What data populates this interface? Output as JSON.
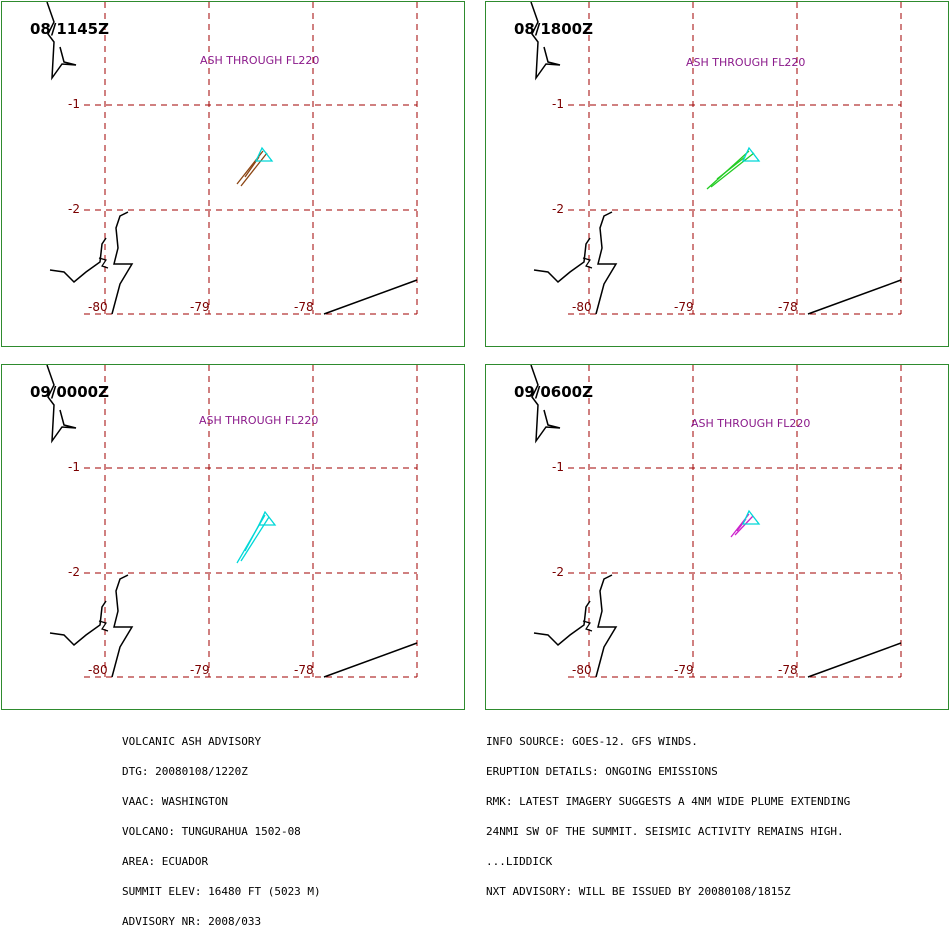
{
  "panels": [
    {
      "time": "08/1145Z",
      "ash": "ASH THROUGH FL220",
      "ash_color": "#8b1a8b",
      "plume_color": "#8b4513"
    },
    {
      "time": "08/1800Z",
      "ash": "ASH THROUGH FL220",
      "ash_color": "#8b1a8b",
      "plume_color": "#22cc22"
    },
    {
      "time": "09/0000Z",
      "ash": "ASH THROUGH FL220",
      "ash_color": "#8b1a8b",
      "plume_color": "#00d8d8"
    },
    {
      "time": "09/0600Z",
      "ash": "ASH THROUGH FL220",
      "ash_color": "#8b1a8b",
      "plume_color": "#cc22cc"
    }
  ],
  "axis": {
    "lat_labels": [
      "-1",
      "-2"
    ],
    "lon_labels": [
      "-80",
      "-79",
      "-78"
    ]
  },
  "volcano_marker_color": "#00d8d8",
  "grid_color": "#a00000",
  "advisory_left": [
    "VOLCANIC ASH ADVISORY",
    "DTG: 20080108/1220Z",
    "VAAC: WASHINGTON",
    "VOLCANO: TUNGURAHUA 1502-08",
    "AREA: ECUADOR",
    "SUMMIT ELEV: 16480 FT (5023 M)",
    "ADVISORY NR: 2008/033"
  ],
  "advisory_right": [
    "INFO SOURCE: GOES-12. GFS WINDS.",
    "ERUPTION DETAILS: ONGOING EMISSIONS",
    "RMK: LATEST IMAGERY SUGGESTS A 4NM WIDE PLUME EXTENDING",
    "24NMI SW OF THE SUMMIT. SEISMIC ACTIVITY REMAINS HIGH.",
    "...LIDDICK",
    "NXT ADVISORY: WILL BE ISSUED BY 20080108/1815Z"
  ]
}
